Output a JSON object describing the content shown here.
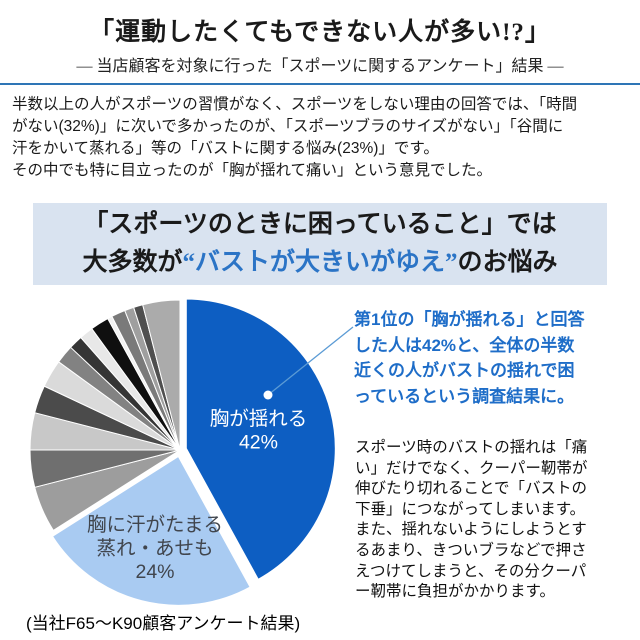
{
  "header": {
    "title": "「運動したくてもできない人が多い!?」",
    "subtitle": "― 当店顧客を対象に行った「スポーツに関するアンケート」結果 ―",
    "rule_color": "#2e75b6"
  },
  "intro": {
    "text": "半数以上の人がスポーツの習慣がなく、スポーツをしない理由の回答では、「時間\nがない(32%)」に次いで多かったのが、「スポーツブラのサイズがない」「谷間に\n汗をかいて蒸れる」等の「バストに関する悩み(23%)」です。\nその中でも特に目立ったのが「胸が揺れて痛い」という意見でした。"
  },
  "banner": {
    "background": "#d9e3f0",
    "line1": "「スポーツのときに困っていること」では",
    "line2_pre": "大多数が",
    "line2_highlight": "“バストが大きいがゆえ”",
    "line2_post": "のお悩み",
    "highlight_color": "#2b74c6"
  },
  "chart_data": {
    "type": "pie",
    "unit": "%",
    "rotation": "clockwise-from-top",
    "slices": [
      {
        "label": "胸が揺れる",
        "value": 42,
        "color": "#0d5ec2",
        "label_lines": [
          "胸が揺れる",
          "42%"
        ],
        "label_color": "#ffffff"
      },
      {
        "label": "胸に汗がたまる 蒸れ・あせも",
        "value": 24,
        "color": "#a9cbf2",
        "label_lines": [
          "胸に汗がたまる",
          "蒸れ・あせも",
          "24%"
        ],
        "label_color": "#40454d"
      },
      {
        "label": "",
        "value": 5,
        "color": "#9d9d9d"
      },
      {
        "label": "",
        "value": 4,
        "color": "#6f6f6f"
      },
      {
        "label": "",
        "value": 4,
        "color": "#c8c8c8"
      },
      {
        "label": "",
        "value": 3,
        "color": "#4b4b4b"
      },
      {
        "label": "",
        "value": 3,
        "color": "#dadada"
      },
      {
        "label": "",
        "value": 2,
        "color": "#828282"
      },
      {
        "label": "",
        "value": 1.5,
        "color": "#353535"
      },
      {
        "label": "",
        "value": 1.5,
        "color": "#e8e8e8"
      },
      {
        "label": "",
        "value": 2,
        "color": "#0f0f0f"
      },
      {
        "label": "",
        "value": 0.5,
        "color": "#f2f2f2"
      },
      {
        "label": "",
        "value": 1.5,
        "color": "#7a7a7a"
      },
      {
        "label": "",
        "value": 1,
        "color": "#9f9f9f"
      },
      {
        "label": "",
        "value": 1,
        "color": "#4f4f4f"
      },
      {
        "label": "",
        "value": 4,
        "color": "#ababab"
      }
    ],
    "callout_color": "#5b9bd5"
  },
  "notes": {
    "highlight": "第1位の「胸が揺れる」と回答\nした人は42%と、全体の半数\n近くの人がバストの揺れで困\nっているという調査結果に。",
    "body": "スポーツ時のバストの揺れは「痛\nい」だけでなく、クーパー靭帯が\n伸びたり切れることで「バストの\n下垂」につながってしまいます。\nまた、揺れないようにしようとす\nるあまり、きついブラなどで押さ\nえつけてしまうと、その分クーパ\nー靭帯に負担がかかります。"
  },
  "caption": {
    "text": "(当社F65〜K90顧客アンケート結果)"
  }
}
